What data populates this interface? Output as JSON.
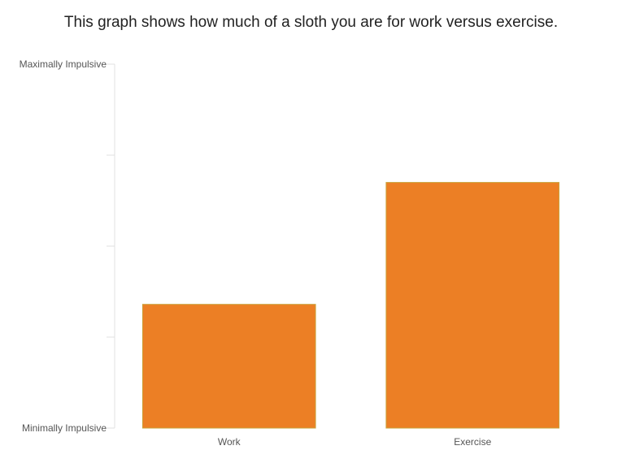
{
  "chart_data": {
    "type": "bar",
    "title": "This graph shows how much of a sloth you are for work versus exercise.",
    "categories": [
      "Work",
      "Exercise"
    ],
    "values": [
      34,
      67.5
    ],
    "ylim": [
      0,
      100
    ],
    "y_tick_labels": [
      "Minimally Impulsive",
      "",
      "",
      "",
      "Maximally Impulsive"
    ],
    "xlabel": "",
    "ylabel": "",
    "grid": false,
    "legend": "none",
    "colors": {
      "bar_fill": "#ec7f25",
      "bar_stroke": "#c9a23a",
      "axis": "#e0e0e0"
    }
  }
}
